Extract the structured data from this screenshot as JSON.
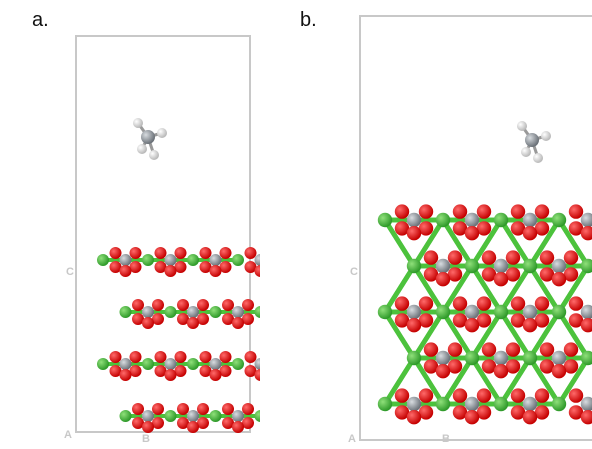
{
  "panels": [
    {
      "label": "a.",
      "axis_labels": [
        "C",
        "A",
        "B"
      ]
    },
    {
      "label": "b.",
      "axis_labels": [
        "C",
        "A",
        "B"
      ]
    }
  ]
}
